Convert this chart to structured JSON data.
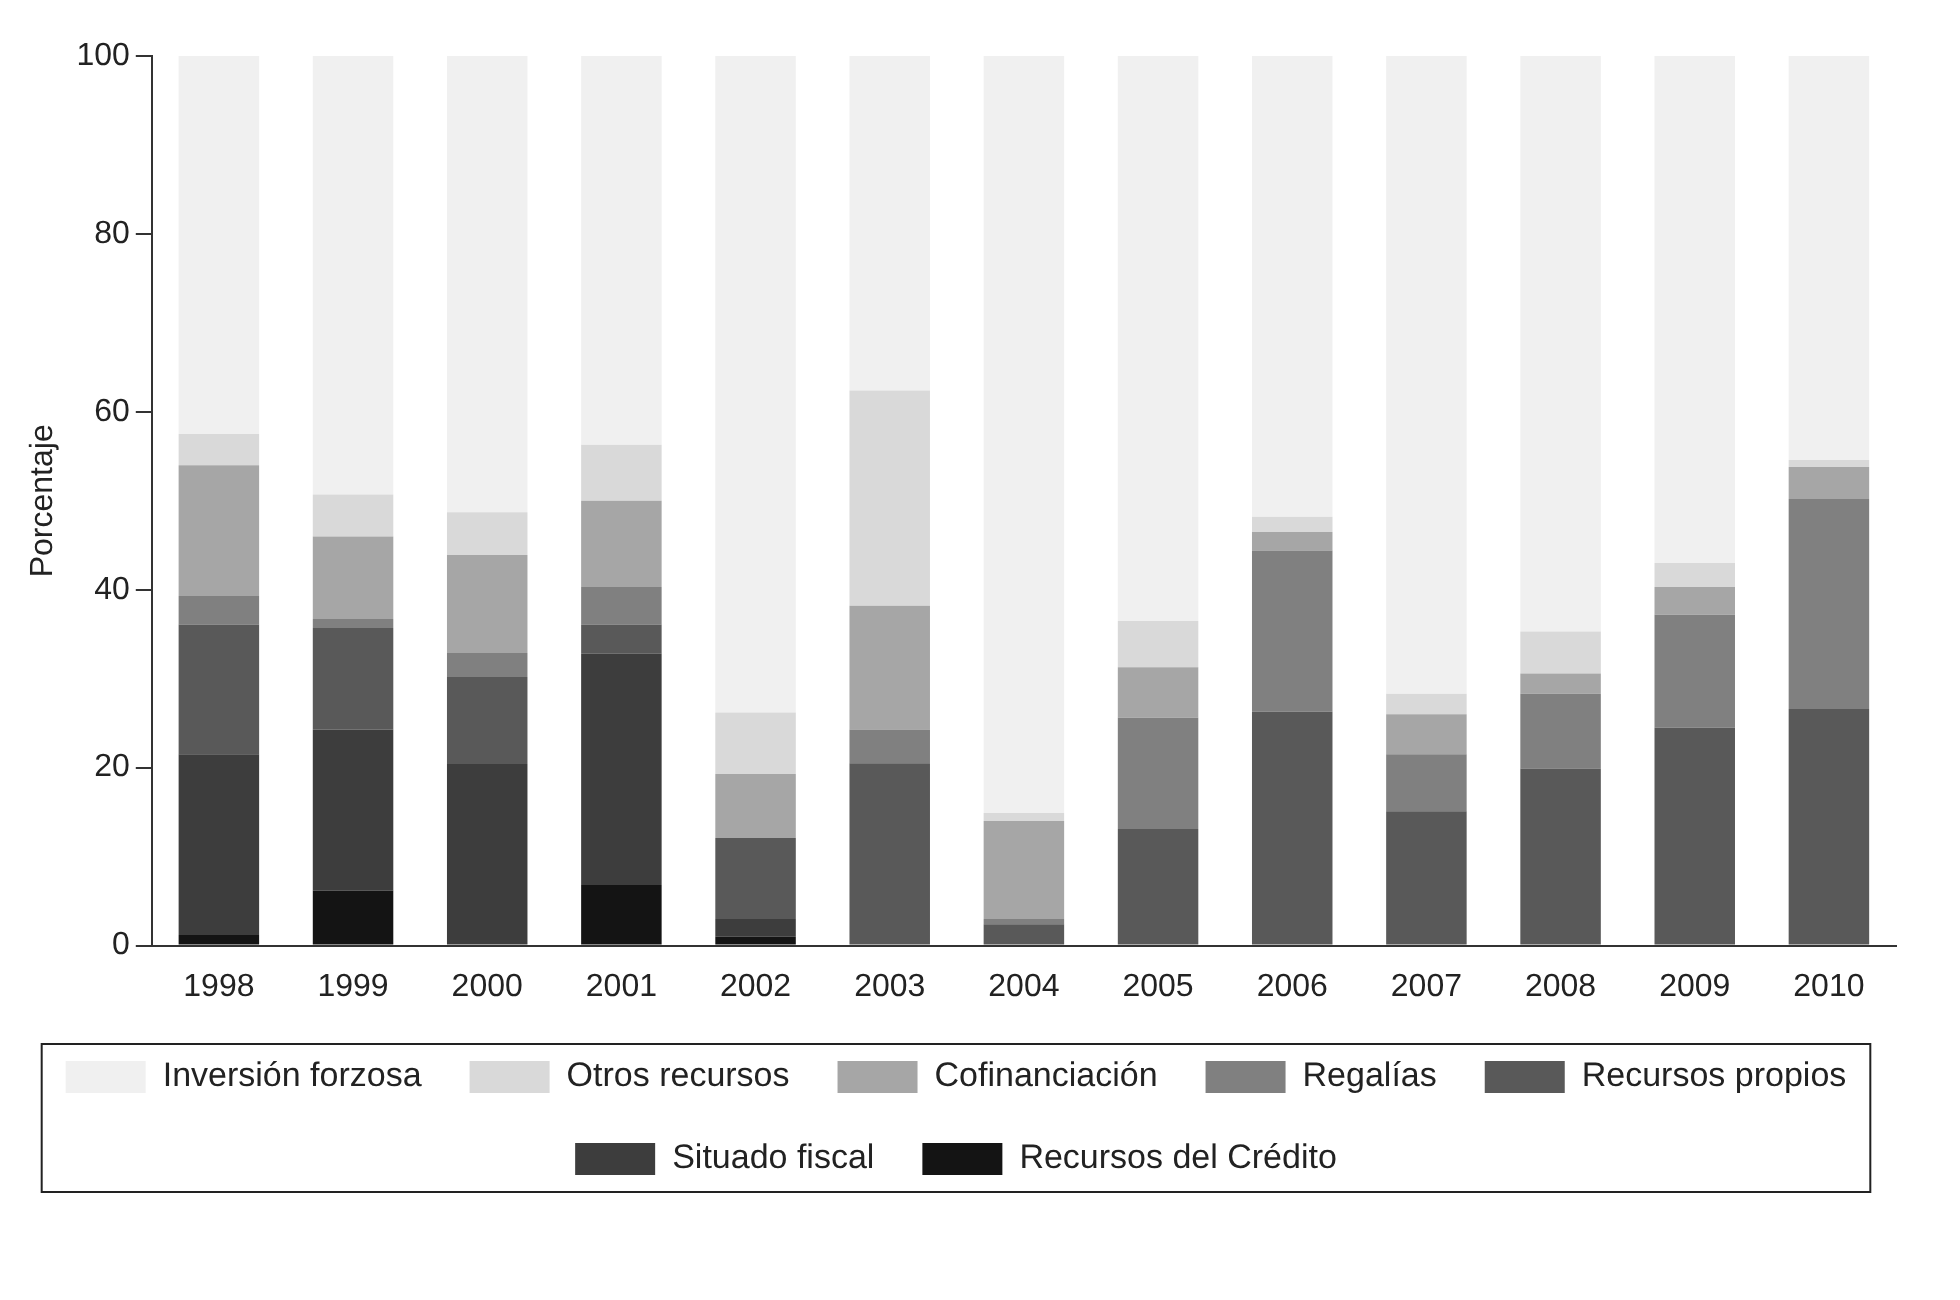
{
  "chart_data": {
    "type": "bar",
    "stacked": true,
    "ylabel": "Porcentaje",
    "categories": [
      "1998",
      "1999",
      "2000",
      "2001",
      "2002",
      "2003",
      "2004",
      "2005",
      "2006",
      "2007",
      "2008",
      "2009",
      "2010"
    ],
    "ylim": [
      0,
      100
    ],
    "yticks": [
      0,
      20,
      40,
      60,
      80,
      100
    ],
    "grid": false,
    "legend": "bottom",
    "series": [
      {
        "name": "Recursos del Crédito",
        "color": "#141414",
        "values": [
          1.2,
          6.2,
          0,
          6.8,
          1.0,
          0,
          0,
          0,
          0,
          0,
          0,
          0,
          0
        ]
      },
      {
        "name": "Situado fiscal",
        "color": "#3d3d3d",
        "values": [
          20.3,
          18.1,
          20.4,
          26.0,
          2.0,
          0,
          0,
          0,
          0,
          0,
          0,
          0,
          0
        ]
      },
      {
        "name": "Recursos propios",
        "color": "#595959",
        "values": [
          14.6,
          11.4,
          9.8,
          3.3,
          9.1,
          20.5,
          2.4,
          13.1,
          26.3,
          15.1,
          19.9,
          24.5,
          26.6
        ]
      },
      {
        "name": "Regalías",
        "color": "#808080",
        "values": [
          3.2,
          1.0,
          2.7,
          4.2,
          0,
          3.8,
          0.6,
          12.5,
          18.1,
          6.4,
          8.4,
          12.7,
          23.6
        ]
      },
      {
        "name": "Cofinanciación",
        "color": "#a6a6a6",
        "values": [
          14.7,
          9.3,
          11.0,
          9.7,
          7.2,
          13.9,
          11.0,
          5.7,
          2.1,
          4.5,
          2.3,
          3.1,
          3.6
        ]
      },
      {
        "name": "Otros recursos",
        "color": "#d9d9d9",
        "values": [
          3.5,
          4.7,
          4.8,
          6.3,
          6.9,
          24.2,
          0.9,
          5.2,
          1.7,
          2.3,
          4.7,
          2.7,
          0.8
        ]
      },
      {
        "name": "Inversión forzosa",
        "color": "#f0f0f0",
        "values": [
          42.5,
          49.3,
          51.3,
          43.7,
          73.8,
          37.6,
          85.1,
          63.5,
          51.8,
          71.7,
          64.7,
          57.0,
          45.4
        ]
      }
    ]
  }
}
